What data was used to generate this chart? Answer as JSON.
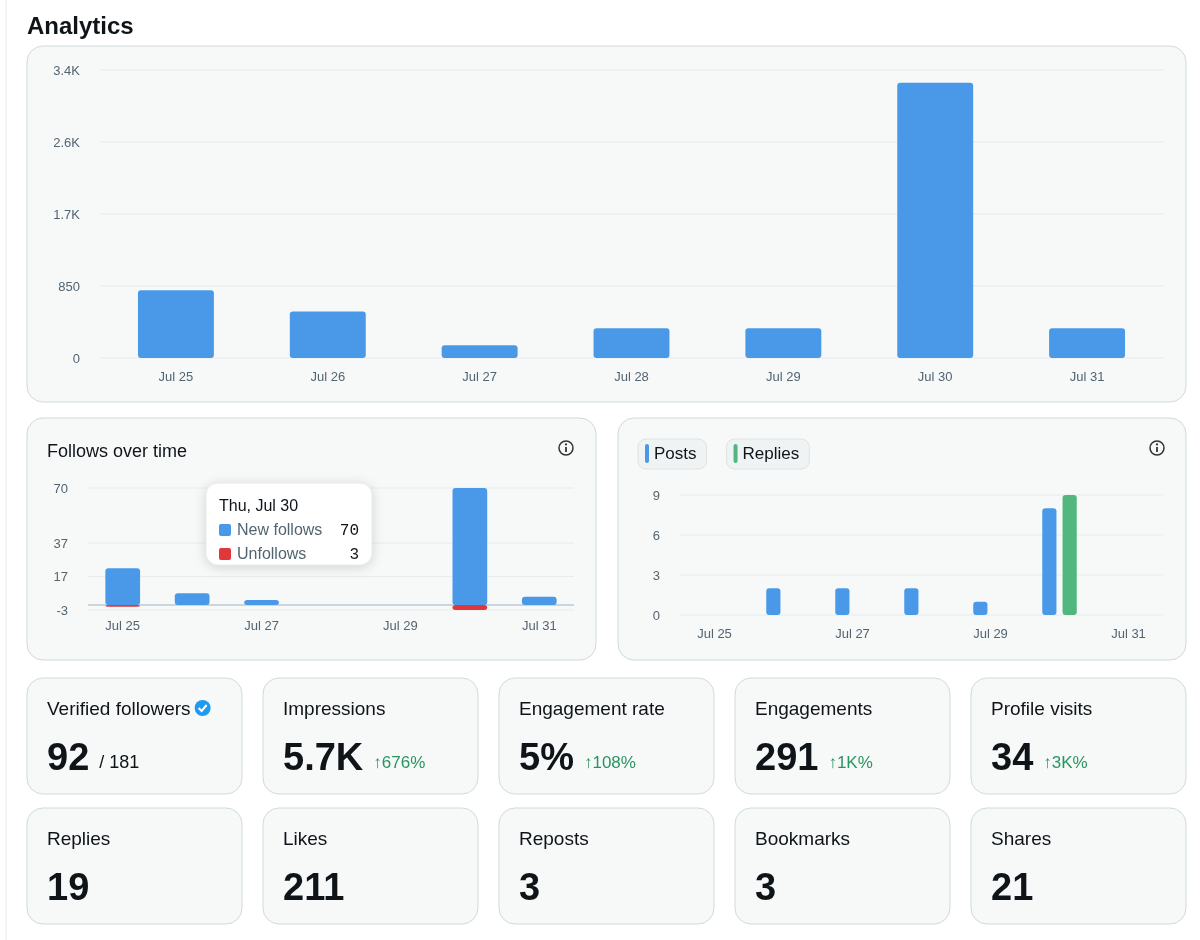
{
  "chart_data": [
    {
      "type": "bar",
      "title": "Analytics",
      "categories": [
        "Jul 25",
        "Jul 26",
        "Jul 27",
        "Jul 28",
        "Jul 29",
        "Jul 30",
        "Jul 31"
      ],
      "values": [
        800,
        550,
        150,
        350,
        350,
        3250,
        350
      ],
      "color": "#4a99e9",
      "ylim": [
        0,
        3400
      ],
      "yticks": [
        0,
        850,
        {
          "value": 1700,
          "label": "1.7K"
        },
        {
          "value": 2550,
          "label": "2.6K"
        },
        {
          "value": 3400,
          "label": "3.4K"
        }
      ],
      "grid": "y"
    },
    {
      "type": "bar",
      "title": "Follows over time",
      "stacked": true,
      "categories": [
        "Jul 25",
        null,
        "Jul 27",
        null,
        "Jul 29",
        null,
        "Jul 31"
      ],
      "series": [
        {
          "name": "New follows",
          "color": "#4a99e9",
          "values": [
            22,
            7,
            3,
            null,
            null,
            70,
            5
          ]
        },
        {
          "name": "Unfollows",
          "color": "#e0373b",
          "values": [
            -1,
            0,
            0,
            null,
            null,
            -3,
            0
          ]
        }
      ],
      "ylim": [
        -3,
        70
      ],
      "yticks": [
        -3,
        17,
        37,
        70
      ],
      "grid": "y",
      "legend": "center",
      "annotations": [
        "Thu, Jul 30",
        "70",
        "3"
      ]
    },
    {
      "type": "bar",
      "categories": [
        "Jul 25",
        null,
        "Jul 27",
        null,
        "Jul 29",
        null,
        "Jul 31"
      ],
      "series": [
        {
          "name": "Posts",
          "color": "#4a99e9",
          "values": [
            0,
            2,
            2,
            2,
            1,
            8,
            0
          ]
        },
        {
          "name": "Replies",
          "color": "#52b67f",
          "values": [
            0,
            0,
            0,
            0,
            0,
            9,
            0
          ]
        }
      ],
      "ylim": [
        0,
        9
      ],
      "yticks": [
        0,
        3,
        6,
        9
      ],
      "grid": "y",
      "legend": "top left"
    },
    {
      "type": "other",
      "annotations": [
        "Verified followers",
        "92",
        "/ 181",
        "Impressions",
        "5.7K",
        "↑676%",
        "Engagement rate",
        "5%",
        "↑108%",
        "Engagements",
        "291",
        "↑1K%",
        "Profile visits",
        "34",
        "↑3K%",
        "Replies",
        "19",
        "Likes",
        "211",
        "Reposts",
        "3",
        "Bookmarks",
        "3",
        "Shares",
        "21"
      ]
    }
  ]
}
